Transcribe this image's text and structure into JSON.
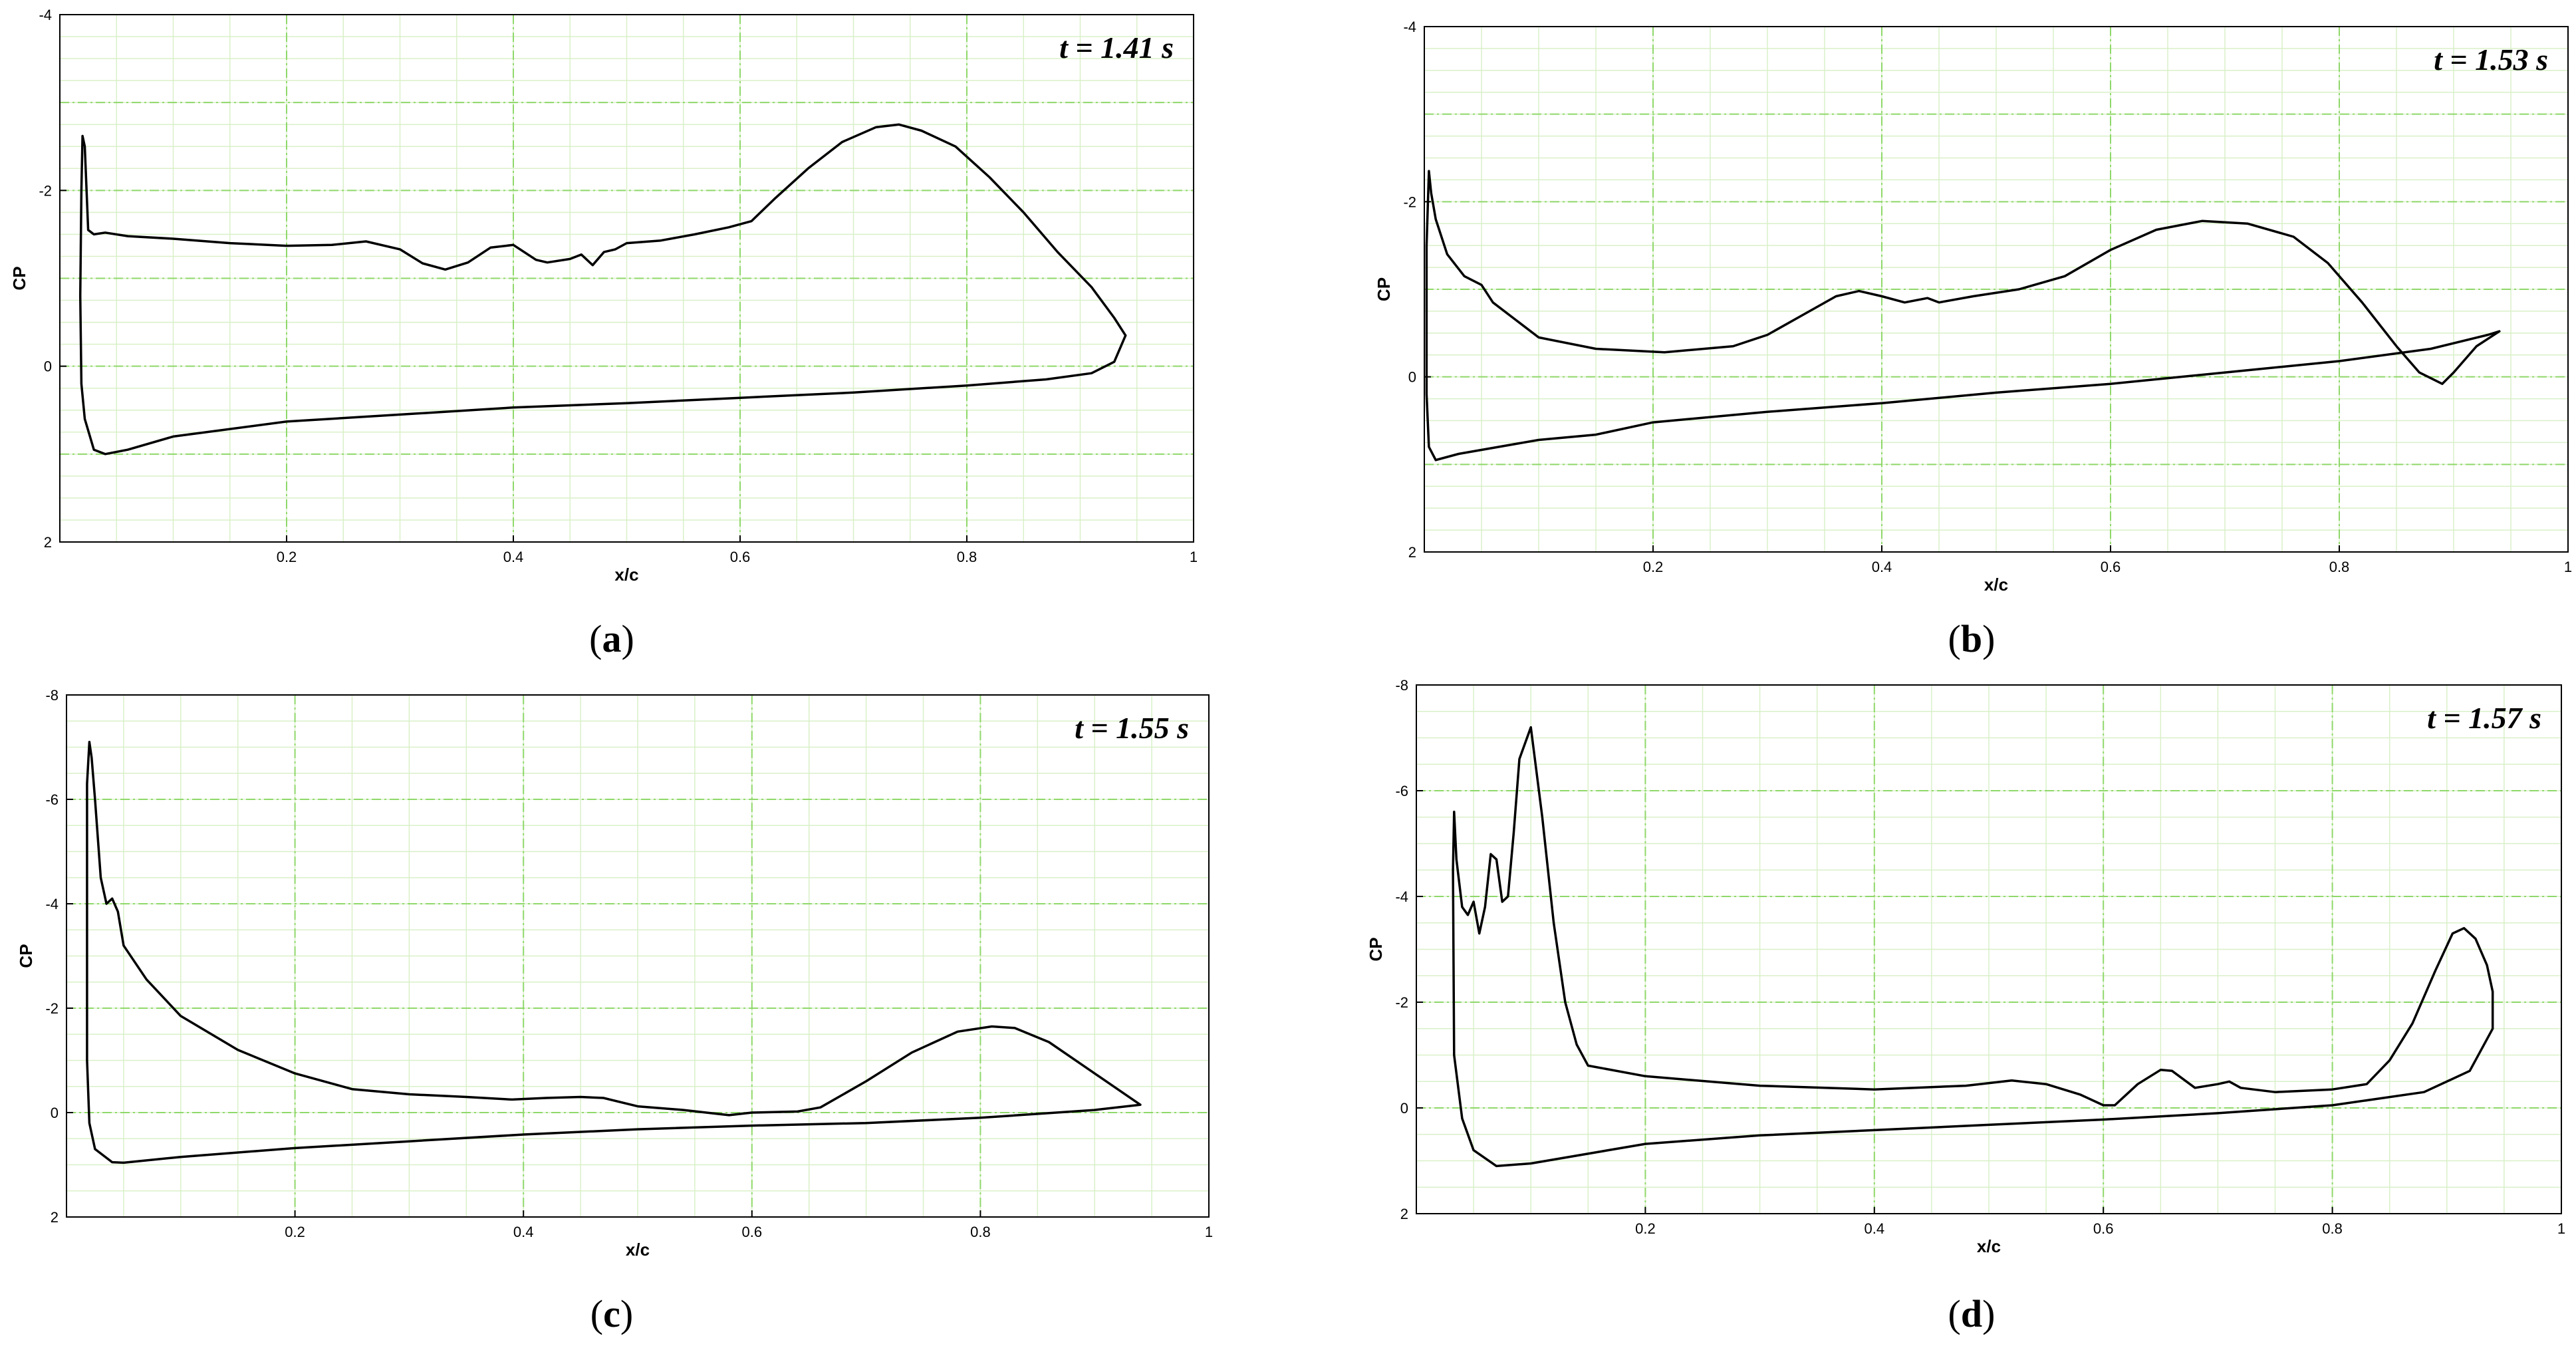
{
  "chart_data": [
    {
      "type": "line",
      "panel_label": "a",
      "annotation": "t = 1.41 s",
      "xlabel": "x/c",
      "ylabel": "CP",
      "xlim": [
        0,
        1
      ],
      "ylim": [
        -4,
        2
      ],
      "y_inverted": true,
      "grid": true,
      "x_ticks": [
        "0.2",
        "0.4",
        "0.6",
        "0.8",
        "1"
      ],
      "y_ticks": [
        "-4",
        "-2",
        "0",
        "2"
      ],
      "series": [
        {
          "values": [
            [
              0.94,
              -0.35
            ],
            [
              0.93,
              -0.55
            ],
            [
              0.91,
              -0.9
            ],
            [
              0.88,
              -1.3
            ],
            [
              0.85,
              -1.75
            ],
            [
              0.82,
              -2.15
            ],
            [
              0.79,
              -2.5
            ],
            [
              0.76,
              -2.68
            ],
            [
              0.74,
              -2.75
            ],
            [
              0.72,
              -2.72
            ],
            [
              0.69,
              -2.55
            ],
            [
              0.66,
              -2.25
            ],
            [
              0.63,
              -1.9
            ],
            [
              0.61,
              -1.65
            ],
            [
              0.59,
              -1.58
            ],
            [
              0.56,
              -1.5
            ],
            [
              0.53,
              -1.43
            ],
            [
              0.5,
              -1.4
            ],
            [
              0.49,
              -1.33
            ],
            [
              0.48,
              -1.3
            ],
            [
              0.47,
              -1.15
            ],
            [
              0.46,
              -1.27
            ],
            [
              0.45,
              -1.22
            ],
            [
              0.43,
              -1.18
            ],
            [
              0.42,
              -1.21
            ],
            [
              0.4,
              -1.38
            ],
            [
              0.38,
              -1.35
            ],
            [
              0.36,
              -1.18
            ],
            [
              0.34,
              -1.1
            ],
            [
              0.32,
              -1.17
            ],
            [
              0.3,
              -1.33
            ],
            [
              0.27,
              -1.42
            ],
            [
              0.24,
              -1.38
            ],
            [
              0.2,
              -1.37
            ],
            [
              0.15,
              -1.4
            ],
            [
              0.1,
              -1.45
            ],
            [
              0.06,
              -1.48
            ],
            [
              0.04,
              -1.52
            ],
            [
              0.03,
              -1.5
            ],
            [
              0.025,
              -1.55
            ],
            [
              0.022,
              -2.5
            ],
            [
              0.02,
              -2.62
            ],
            [
              0.019,
              -2.0
            ],
            [
              0.018,
              -0.8
            ],
            [
              0.019,
              0.2
            ],
            [
              0.022,
              0.6
            ],
            [
              0.03,
              0.95
            ],
            [
              0.04,
              1.0
            ],
            [
              0.06,
              0.95
            ],
            [
              0.1,
              0.8
            ],
            [
              0.2,
              0.63
            ],
            [
              0.3,
              0.55
            ],
            [
              0.4,
              0.47
            ],
            [
              0.5,
              0.42
            ],
            [
              0.6,
              0.36
            ],
            [
              0.7,
              0.3
            ],
            [
              0.8,
              0.22
            ],
            [
              0.87,
              0.15
            ],
            [
              0.91,
              0.08
            ],
            [
              0.93,
              -0.05
            ],
            [
              0.94,
              -0.35
            ]
          ]
        }
      ]
    },
    {
      "type": "line",
      "panel_label": "b",
      "annotation": "t = 1.53 s",
      "xlabel": "x/c",
      "ylabel": "CP",
      "xlim": [
        0,
        1
      ],
      "ylim": [
        -4,
        2
      ],
      "y_inverted": true,
      "grid": true,
      "x_ticks": [
        "0.2",
        "0.4",
        "0.6",
        "0.8",
        "1"
      ],
      "y_ticks": [
        "-4",
        "-2",
        "0",
        "2"
      ],
      "series": [
        {
          "values": [
            [
              0.94,
              -0.52
            ],
            [
              0.92,
              -0.35
            ],
            [
              0.9,
              -0.05
            ],
            [
              0.89,
              0.08
            ],
            [
              0.87,
              -0.05
            ],
            [
              0.85,
              -0.35
            ],
            [
              0.82,
              -0.85
            ],
            [
              0.79,
              -1.3
            ],
            [
              0.76,
              -1.6
            ],
            [
              0.72,
              -1.75
            ],
            [
              0.68,
              -1.78
            ],
            [
              0.64,
              -1.68
            ],
            [
              0.6,
              -1.45
            ],
            [
              0.56,
              -1.15
            ],
            [
              0.52,
              -1.0
            ],
            [
              0.48,
              -0.92
            ],
            [
              0.45,
              -0.85
            ],
            [
              0.44,
              -0.9
            ],
            [
              0.42,
              -0.85
            ],
            [
              0.4,
              -0.92
            ],
            [
              0.38,
              -0.98
            ],
            [
              0.36,
              -0.92
            ],
            [
              0.33,
              -0.7
            ],
            [
              0.3,
              -0.48
            ],
            [
              0.27,
              -0.35
            ],
            [
              0.21,
              -0.28
            ],
            [
              0.15,
              -0.32
            ],
            [
              0.1,
              -0.45
            ],
            [
              0.08,
              -0.65
            ],
            [
              0.06,
              -0.85
            ],
            [
              0.05,
              -1.05
            ],
            [
              0.035,
              -1.15
            ],
            [
              0.02,
              -1.4
            ],
            [
              0.01,
              -1.8
            ],
            [
              0.006,
              -2.1
            ],
            [
              0.004,
              -2.35
            ],
            [
              0.002,
              -1.5
            ],
            [
              0.002,
              0.2
            ],
            [
              0.004,
              0.8
            ],
            [
              0.01,
              0.95
            ],
            [
              0.03,
              0.88
            ],
            [
              0.1,
              0.72
            ],
            [
              0.15,
              0.66
            ],
            [
              0.2,
              0.52
            ],
            [
              0.3,
              0.4
            ],
            [
              0.4,
              0.3
            ],
            [
              0.5,
              0.18
            ],
            [
              0.6,
              0.08
            ],
            [
              0.7,
              -0.05
            ],
            [
              0.8,
              -0.18
            ],
            [
              0.88,
              -0.32
            ],
            [
              0.93,
              -0.48
            ],
            [
              0.94,
              -0.52
            ]
          ]
        }
      ]
    },
    {
      "type": "line",
      "panel_label": "c",
      "annotation": "t = 1.55 s",
      "xlabel": "x/c",
      "ylabel": "CP",
      "xlim": [
        0,
        1
      ],
      "ylim": [
        -8,
        2
      ],
      "y_inverted": true,
      "grid": true,
      "x_ticks": [
        "0.2",
        "0.4",
        "0.6",
        "0.8",
        "1"
      ],
      "y_ticks": [
        "-8",
        "-6",
        "-4",
        "-2",
        "0",
        "2"
      ],
      "series": [
        {
          "values": [
            [
              0.94,
              -0.15
            ],
            [
              0.92,
              -0.45
            ],
            [
              0.89,
              -0.9
            ],
            [
              0.86,
              -1.35
            ],
            [
              0.83,
              -1.62
            ],
            [
              0.81,
              -1.65
            ],
            [
              0.78,
              -1.55
            ],
            [
              0.74,
              -1.15
            ],
            [
              0.7,
              -0.6
            ],
            [
              0.66,
              -0.1
            ],
            [
              0.64,
              -0.02
            ],
            [
              0.6,
              0.0
            ],
            [
              0.58,
              0.05
            ],
            [
              0.54,
              -0.05
            ],
            [
              0.5,
              -0.12
            ],
            [
              0.47,
              -0.28
            ],
            [
              0.45,
              -0.3
            ],
            [
              0.42,
              -0.28
            ],
            [
              0.39,
              -0.25
            ],
            [
              0.35,
              -0.3
            ],
            [
              0.3,
              -0.35
            ],
            [
              0.25,
              -0.45
            ],
            [
              0.2,
              -0.75
            ],
            [
              0.15,
              -1.2
            ],
            [
              0.1,
              -1.85
            ],
            [
              0.07,
              -2.55
            ],
            [
              0.05,
              -3.2
            ],
            [
              0.045,
              -3.85
            ],
            [
              0.04,
              -4.1
            ],
            [
              0.035,
              -4.0
            ],
            [
              0.03,
              -4.5
            ],
            [
              0.025,
              -6.0
            ],
            [
              0.022,
              -6.8
            ],
            [
              0.02,
              -7.1
            ],
            [
              0.018,
              -6.3
            ],
            [
              0.018,
              -1.0
            ],
            [
              0.02,
              0.2
            ],
            [
              0.025,
              0.7
            ],
            [
              0.04,
              0.95
            ],
            [
              0.05,
              0.96
            ],
            [
              0.1,
              0.85
            ],
            [
              0.2,
              0.68
            ],
            [
              0.3,
              0.55
            ],
            [
              0.4,
              0.42
            ],
            [
              0.5,
              0.32
            ],
            [
              0.6,
              0.25
            ],
            [
              0.7,
              0.2
            ],
            [
              0.8,
              0.1
            ],
            [
              0.9,
              -0.05
            ],
            [
              0.94,
              -0.15
            ]
          ]
        }
      ]
    },
    {
      "type": "line",
      "panel_label": "d",
      "annotation": "t = 1.57 s",
      "xlabel": "x/c",
      "ylabel": "CP",
      "xlim": [
        0,
        1
      ],
      "ylim": [
        -8,
        2
      ],
      "y_inverted": true,
      "grid": true,
      "x_ticks": [
        "0.2",
        "0.4",
        "0.6",
        "0.8",
        "1"
      ],
      "y_ticks": [
        "-8",
        "-6",
        "-4",
        "-2",
        "0",
        "2"
      ],
      "series": [
        {
          "values": [
            [
              0.94,
              -2.2
            ],
            [
              0.935,
              -2.7
            ],
            [
              0.925,
              -3.2
            ],
            [
              0.915,
              -3.4
            ],
            [
              0.905,
              -3.3
            ],
            [
              0.89,
              -2.6
            ],
            [
              0.87,
              -1.6
            ],
            [
              0.85,
              -0.9
            ],
            [
              0.83,
              -0.45
            ],
            [
              0.8,
              -0.35
            ],
            [
              0.75,
              -0.3
            ],
            [
              0.72,
              -0.38
            ],
            [
              0.71,
              -0.5
            ],
            [
              0.7,
              -0.45
            ],
            [
              0.68,
              -0.38
            ],
            [
              0.66,
              -0.7
            ],
            [
              0.65,
              -0.72
            ],
            [
              0.63,
              -0.45
            ],
            [
              0.61,
              -0.05
            ],
            [
              0.6,
              -0.05
            ],
            [
              0.58,
              -0.25
            ],
            [
              0.55,
              -0.45
            ],
            [
              0.52,
              -0.52
            ],
            [
              0.48,
              -0.42
            ],
            [
              0.4,
              -0.35
            ],
            [
              0.3,
              -0.42
            ],
            [
              0.2,
              -0.6
            ],
            [
              0.15,
              -0.8
            ],
            [
              0.14,
              -1.2
            ],
            [
              0.13,
              -2.0
            ],
            [
              0.12,
              -3.5
            ],
            [
              0.11,
              -5.5
            ],
            [
              0.1,
              -7.2
            ],
            [
              0.09,
              -6.6
            ],
            [
              0.085,
              -5.2
            ],
            [
              0.08,
              -4.0
            ],
            [
              0.075,
              -3.9
            ],
            [
              0.07,
              -4.7
            ],
            [
              0.065,
              -4.8
            ],
            [
              0.06,
              -3.8
            ],
            [
              0.055,
              -3.3
            ],
            [
              0.05,
              -3.9
            ],
            [
              0.045,
              -3.65
            ],
            [
              0.04,
              -3.8
            ],
            [
              0.035,
              -4.7
            ],
            [
              0.033,
              -5.6
            ],
            [
              0.032,
              -4.5
            ],
            [
              0.033,
              -1.0
            ],
            [
              0.04,
              0.2
            ],
            [
              0.05,
              0.8
            ],
            [
              0.07,
              1.1
            ],
            [
              0.1,
              1.05
            ],
            [
              0.2,
              0.68
            ],
            [
              0.3,
              0.52
            ],
            [
              0.4,
              0.42
            ],
            [
              0.5,
              0.32
            ],
            [
              0.6,
              0.22
            ],
            [
              0.7,
              0.1
            ],
            [
              0.8,
              -0.05
            ],
            [
              0.88,
              -0.3
            ],
            [
              0.92,
              -0.7
            ],
            [
              0.94,
              -1.5
            ],
            [
              0.94,
              -2.2
            ]
          ]
        }
      ]
    }
  ]
}
